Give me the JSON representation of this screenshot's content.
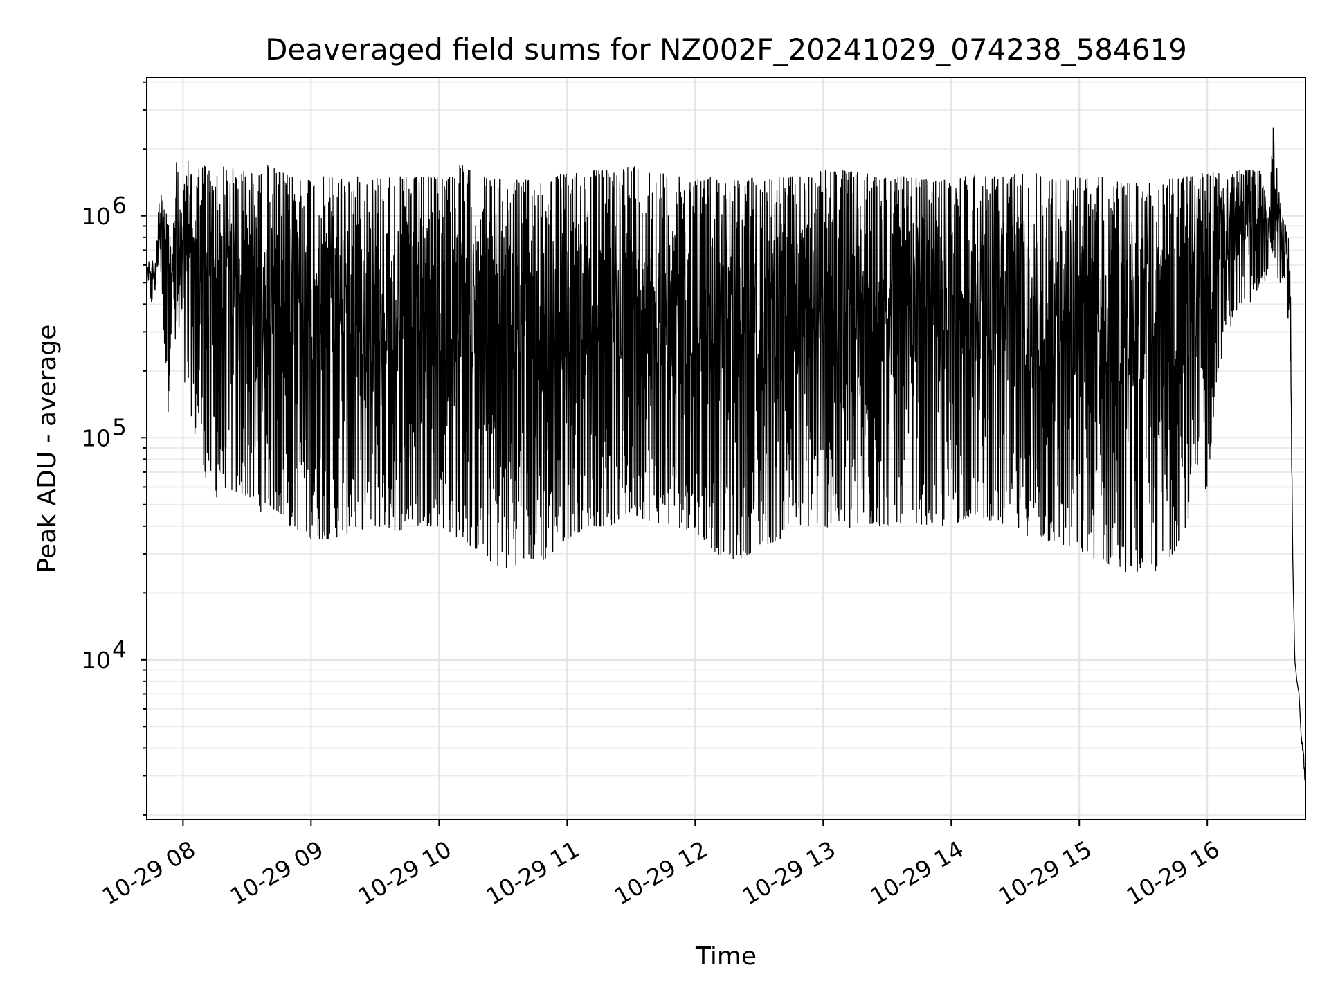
{
  "chart_data": {
    "type": "line",
    "title": "Deaveraged field sums for NZ002F_20241029_074238_584619",
    "xlabel": "Time",
    "ylabel": "Peak ADU - average",
    "yscale": "log",
    "ylim": [
      1900,
      4200000
    ],
    "xlim": [
      "2024-10-29 07:43",
      "2024-10-29 16:46"
    ],
    "grid": true,
    "line_color": "#000000",
    "x_ticks": [
      {
        "value": "2024-10-29 08:00",
        "label": "10-29 08"
      },
      {
        "value": "2024-10-29 09:00",
        "label": "10-29 09"
      },
      {
        "value": "2024-10-29 10:00",
        "label": "10-29 10"
      },
      {
        "value": "2024-10-29 11:00",
        "label": "10-29 11"
      },
      {
        "value": "2024-10-29 12:00",
        "label": "10-29 12"
      },
      {
        "value": "2024-10-29 13:00",
        "label": "10-29 13"
      },
      {
        "value": "2024-10-29 14:00",
        "label": "10-29 14"
      },
      {
        "value": "2024-10-29 15:00",
        "label": "10-29 15"
      },
      {
        "value": "2024-10-29 16:00",
        "label": "10-29 16"
      }
    ],
    "y_ticks": [
      {
        "value": 10000,
        "base": "10",
        "exp": "4"
      },
      {
        "value": 100000,
        "base": "10",
        "exp": "5"
      },
      {
        "value": 1000000,
        "base": "10",
        "exp": "6"
      }
    ],
    "series": [
      {
        "x": [
          "2024-10-29 07:43",
          "2024-10-29 07:45",
          "2024-10-29 07:47",
          "2024-10-29 07:49",
          "2024-10-29 07:51",
          "2024-10-29 07:53",
          "2024-10-29 07:55",
          "2024-10-29 07:57",
          "2024-10-29 07:59",
          "2024-10-29 08:01",
          "2024-10-29 08:03",
          "2024-10-29 08:05",
          "2024-10-29 08:08",
          "2024-10-29 08:11",
          "2024-10-29 08:14",
          "2024-10-29 08:17",
          "2024-10-29 08:20",
          "2024-10-29 08:25",
          "2024-10-29 08:30",
          "2024-10-29 08:35",
          "2024-10-29 08:40",
          "2024-10-29 08:45",
          "2024-10-29 08:50",
          "2024-10-29 08:55",
          "2024-10-29 09:00",
          "2024-10-29 09:10",
          "2024-10-29 09:20",
          "2024-10-29 09:30",
          "2024-10-29 09:40",
          "2024-10-29 09:50",
          "2024-10-29 10:00",
          "2024-10-29 10:10",
          "2024-10-29 10:20",
          "2024-10-29 10:30",
          "2024-10-29 10:40",
          "2024-10-29 10:50",
          "2024-10-29 11:00",
          "2024-10-29 11:10",
          "2024-10-29 11:20",
          "2024-10-29 11:30",
          "2024-10-29 11:40",
          "2024-10-29 11:50",
          "2024-10-29 12:00",
          "2024-10-29 12:10",
          "2024-10-29 12:20",
          "2024-10-29 12:30",
          "2024-10-29 12:40",
          "2024-10-29 12:50",
          "2024-10-29 13:00",
          "2024-10-29 13:10",
          "2024-10-29 13:20",
          "2024-10-29 13:30",
          "2024-10-29 13:40",
          "2024-10-29 13:50",
          "2024-10-29 14:00",
          "2024-10-29 14:10",
          "2024-10-29 14:20",
          "2024-10-29 14:30",
          "2024-10-29 14:40",
          "2024-10-29 14:50",
          "2024-10-29 15:00",
          "2024-10-29 15:10",
          "2024-10-29 15:20",
          "2024-10-29 15:30",
          "2024-10-29 15:40",
          "2024-10-29 15:50",
          "2024-10-29 16:00",
          "2024-10-29 16:05",
          "2024-10-29 16:10",
          "2024-10-29 16:15",
          "2024-10-29 16:20",
          "2024-10-29 16:25",
          "2024-10-29 16:27",
          "2024-10-29 16:29",
          "2024-10-29 16:31",
          "2024-10-29 16:33",
          "2024-10-29 16:35",
          "2024-10-29 16:37",
          "2024-10-29 16:38",
          "2024-10-29 16:39",
          "2024-10-29 16:40",
          "2024-10-29 16:41",
          "2024-10-29 16:42",
          "2024-10-29 16:43",
          "2024-10-29 16:44",
          "2024-10-29 16:45",
          "2024-10-29 16:46"
        ],
        "upper": [
          600000,
          650000,
          600000,
          1300000,
          1500000,
          1000000,
          700000,
          1900000,
          1000000,
          1500000,
          1900000,
          1500000,
          1700000,
          1700000,
          1500000,
          1600000,
          1700000,
          1600000,
          1600000,
          1500000,
          1700000,
          1600000,
          1500000,
          1500000,
          1500000,
          1500000,
          1500000,
          1500000,
          1500000,
          1500000,
          1500000,
          1700000,
          1500000,
          1450000,
          1450000,
          1500000,
          1550000,
          1600000,
          1600000,
          1700000,
          1600000,
          1500000,
          1500000,
          1500000,
          1450000,
          1500000,
          1500000,
          1500000,
          1600000,
          1600000,
          1550000,
          1500000,
          1500000,
          1450000,
          1450000,
          1550000,
          1500000,
          1550000,
          1550000,
          1450000,
          1500000,
          1500000,
          1400000,
          1400000,
          1450000,
          1500000,
          1600000,
          1700000,
          1600000,
          1600000,
          1600000,
          1600000,
          1300000,
          1000000,
          2800000,
          1500000,
          1000000,
          900000,
          800000,
          500000,
          30000,
          10000,
          8000,
          7000,
          4500,
          4000,
          2700
        ],
        "lower": [
          500000,
          400000,
          450000,
          700000,
          300000,
          130000,
          400000,
          200000,
          300000,
          150000,
          150000,
          100000,
          100000,
          60000,
          60000,
          50000,
          60000,
          55000,
          55000,
          45000,
          50000,
          45000,
          40000,
          38000,
          35000,
          35000,
          38000,
          40000,
          38000,
          40000,
          40000,
          35000,
          30000,
          25000,
          28000,
          28000,
          35000,
          40000,
          40000,
          45000,
          42000,
          40000,
          38000,
          30000,
          28000,
          32000,
          35000,
          40000,
          40000,
          38000,
          40000,
          40000,
          42000,
          40000,
          40000,
          45000,
          42000,
          38000,
          35000,
          33000,
          30000,
          28000,
          25000,
          25000,
          25000,
          40000,
          60000,
          200000,
          300000,
          400000,
          400000,
          500000,
          500000,
          600000,
          700000,
          500000,
          500000,
          400000,
          300000,
          200000,
          30000,
          10000,
          8000,
          7000,
          4500,
          3500,
          2600
        ]
      }
    ]
  }
}
